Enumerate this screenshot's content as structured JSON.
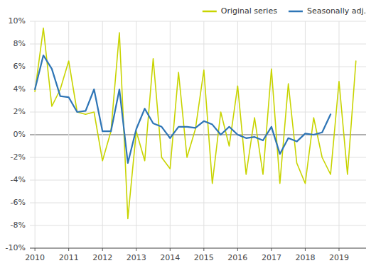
{
  "chart_data": {
    "type": "line",
    "x": [
      2010,
      2010.25,
      2010.5,
      2010.75,
      2011,
      2011.25,
      2011.5,
      2011.75,
      2012,
      2012.25,
      2012.5,
      2012.75,
      2013,
      2013.25,
      2013.5,
      2013.75,
      2014,
      2014.25,
      2014.5,
      2014.75,
      2015,
      2015.25,
      2015.5,
      2015.75,
      2016,
      2016.25,
      2016.5,
      2016.75,
      2017,
      2017.25,
      2017.5,
      2017.75,
      2018,
      2018.25,
      2018.5,
      2018.75,
      2019,
      2019.25,
      2019.5
    ],
    "series": [
      {
        "name": "Original series",
        "color": "#c8d400",
        "values": [
          3.8,
          9.4,
          2.5,
          4.0,
          6.5,
          2.0,
          1.8,
          2.0,
          -2.3,
          0.3,
          9.0,
          -7.4,
          0.3,
          -2.3,
          6.7,
          -2.0,
          -3.0,
          5.5,
          -2.0,
          0.5,
          5.7,
          -4.3,
          2.0,
          -1.0,
          4.3,
          -3.5,
          1.5,
          -3.5,
          5.8,
          -4.3,
          4.5,
          -2.5,
          -4.3,
          1.5,
          -2.0,
          -3.5,
          4.7,
          -3.5,
          6.5
        ]
      },
      {
        "name": "Seasonally adj.",
        "color": "#2e75b6",
        "values": [
          4.0,
          7.0,
          5.8,
          3.4,
          3.3,
          2.0,
          2.1,
          4.0,
          0.3,
          0.3,
          4.0,
          -2.5,
          0.5,
          2.3,
          1.0,
          0.7,
          -0.3,
          0.7,
          0.7,
          0.6,
          1.2,
          0.9,
          0.0,
          0.7,
          0.0,
          -0.3,
          -0.2,
          -0.5,
          0.7,
          -1.7,
          -0.3,
          -0.6,
          0.1,
          0.0,
          0.2,
          1.8,
          null,
          null,
          null
        ]
      }
    ],
    "xlim": [
      2009.85,
      2019.8
    ],
    "xticks": [
      2010,
      2011,
      2012,
      2013,
      2014,
      2015,
      2016,
      2017,
      2018,
      2019
    ],
    "ylim": [
      -10,
      10
    ],
    "yticks": [
      {
        "value": -10,
        "label": "-10%"
      },
      {
        "value": -8,
        "label": "-8%"
      },
      {
        "value": -6,
        "label": "-6%"
      },
      {
        "value": -4,
        "label": "-4%"
      },
      {
        "value": -2,
        "label": "-2%"
      },
      {
        "value": 0,
        "label": "0%"
      },
      {
        "value": 2,
        "label": "2%"
      },
      {
        "value": 4,
        "label": "4%"
      },
      {
        "value": 6,
        "label": "6%"
      },
      {
        "value": 8,
        "label": "8%"
      },
      {
        "value": 10,
        "label": "10%"
      }
    ],
    "grid": true,
    "legend": "upper right"
  }
}
